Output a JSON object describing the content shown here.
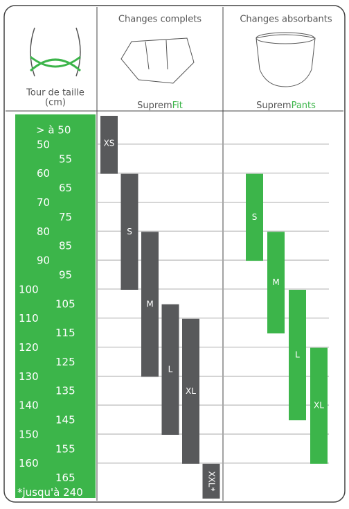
{
  "header": {
    "waist_title": "Tour de taille",
    "waist_unit": "(cm)",
    "columns": [
      {
        "title": "Changes complets",
        "brand": "Suprem",
        "line": "Fit"
      },
      {
        "title": "Changes absorbants",
        "brand": "Suprem",
        "line": "Pants"
      }
    ]
  },
  "waist_labels": [
    "> à 50",
    "50",
    "55",
    "60",
    "65",
    "70",
    "75",
    "80",
    "85",
    "90",
    "95",
    "100",
    "105",
    "110",
    "115",
    "120",
    "125",
    "130",
    "135",
    "140",
    "145",
    "150",
    "155",
    "160",
    "165",
    "*jusqu'à 240"
  ],
  "ylim": [
    40,
    172
  ],
  "gridlines": [
    50,
    60,
    70,
    80,
    90,
    100,
    110,
    120,
    130,
    140,
    150,
    160
  ],
  "products": [
    {
      "color": "#58595b",
      "bars": [
        {
          "size": "XS",
          "from": 40,
          "to": 60
        },
        {
          "size": "S",
          "from": 60,
          "to": 100
        },
        {
          "size": "M",
          "from": 80,
          "to": 130
        },
        {
          "size": "L",
          "from": 105,
          "to": 150
        },
        {
          "size": "XL",
          "from": 110,
          "to": 160
        },
        {
          "size": "XXL*",
          "from": 160,
          "to": 172
        }
      ]
    },
    {
      "color": "#3cb54a",
      "bars": [
        {
          "size": "S",
          "from": 60,
          "to": 90
        },
        {
          "size": "M",
          "from": 80,
          "to": 115
        },
        {
          "size": "L",
          "from": 100,
          "to": 145
        },
        {
          "size": "XL",
          "from": 120,
          "to": 160
        }
      ]
    }
  ]
}
